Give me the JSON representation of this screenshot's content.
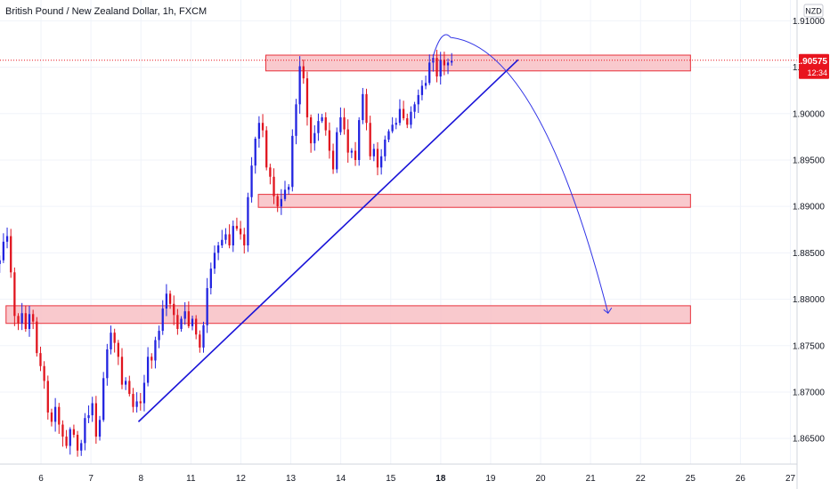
{
  "chart_data": {
    "type": "candlestick",
    "title": "British Pound / New Zealand Dollar, 1h, FXCM",
    "currency": "NZD",
    "ylim": [
      1.862,
      1.912
    ],
    "y_ticks": [
      "1.91000",
      "1.90500",
      "1.90000",
      "1.89500",
      "1.89000",
      "1.88500",
      "1.88000",
      "1.87500",
      "1.87000",
      "1.86500"
    ],
    "y_tick_values": [
      1.91,
      1.905,
      1.9,
      1.895,
      1.89,
      1.885,
      1.88,
      1.875,
      1.87,
      1.865
    ],
    "x_ticks": [
      "6",
      "7",
      "8",
      "11",
      "12",
      "13",
      "14",
      "15",
      "18",
      "19",
      "20",
      "21",
      "22",
      "25",
      "26",
      "27"
    ],
    "x_tick_positions": [
      0.5,
      1.5,
      2.5,
      3.5,
      4.5,
      5.5,
      6.5,
      7.5,
      8.5,
      9.5,
      10.5,
      11.5,
      12.5,
      13.5,
      14.5,
      15.5
    ],
    "bold_ticks": [
      "18"
    ],
    "current_price": {
      "label": "1.90575",
      "value": 1.90575,
      "countdown": "12:34"
    },
    "colors": {
      "up": "#2123e0",
      "down": "#e0141e",
      "zone_fill": "#f8c3c8",
      "zone_stroke": "#e8323c",
      "trendline": "#1a14d8",
      "projection": "#3033e6",
      "price_label_bg": "#e8141e"
    },
    "support_resistance_zones": [
      {
        "x_start": 5.0,
        "x_end": 13.5,
        "y_low": 1.9046,
        "y_high": 1.9063
      },
      {
        "x_start": 4.85,
        "x_end": 13.5,
        "y_low": 1.8899,
        "y_high": 1.8913
      },
      {
        "x_start": -0.2,
        "x_end": 13.5,
        "y_low": 1.8774,
        "y_high": 1.8793
      }
    ],
    "trendline": {
      "x1": 2.45,
      "y1": 1.8668,
      "x2": 10.05,
      "y2": 1.9058
    },
    "projection": {
      "x_start": 8.35,
      "y_start": 1.9062,
      "x_peak": 8.7,
      "y_peak": 1.9082,
      "x_end": 11.85,
      "y_end": 1.8785
    },
    "candles": {
      "x_start": -0.4,
      "x_end": 8.72,
      "closes": [
        1.8838,
        1.8842,
        1.8862,
        1.8868,
        1.8829,
        1.8782,
        1.8774,
        1.8785,
        1.8768,
        1.8784,
        1.8776,
        1.8742,
        1.8728,
        1.8712,
        1.8678,
        1.8668,
        1.8684,
        1.8665,
        1.8652,
        1.8642,
        1.866,
        1.8654,
        1.8637,
        1.8645,
        1.8672,
        1.8675,
        1.8688,
        1.8652,
        1.867,
        1.8715,
        1.8746,
        1.8764,
        1.8753,
        1.8738,
        1.8708,
        1.8712,
        1.8698,
        1.8684,
        1.869,
        1.8688,
        1.871,
        1.8738,
        1.8734,
        1.8756,
        1.8766,
        1.879,
        1.8806,
        1.8795,
        1.8783,
        1.8768,
        1.8779,
        1.8787,
        1.8771,
        1.8779,
        1.8762,
        1.8748,
        1.8772,
        1.8812,
        1.8833,
        1.885,
        1.8858,
        1.8864,
        1.887,
        1.8858,
        1.8879,
        1.8876,
        1.887,
        1.8858,
        1.891,
        1.8944,
        1.8973,
        1.899,
        1.8982,
        1.8942,
        1.8932,
        1.8911,
        1.89,
        1.8908,
        1.8918,
        1.8921,
        1.8976,
        1.901,
        1.9051,
        1.9038,
        1.8996,
        1.8968,
        1.8979,
        1.8992,
        1.8996,
        1.8982,
        1.896,
        1.894,
        1.898,
        1.8996,
        1.8983,
        1.8958,
        1.896,
        1.895,
        1.8993,
        1.9021,
        1.899,
        1.8954,
        1.8962,
        1.8942,
        1.8954,
        1.8972,
        1.8981,
        1.8988,
        1.899,
        1.9005,
        1.8995,
        1.8988,
        1.9002,
        1.901,
        1.902,
        1.903,
        1.9033,
        1.9055,
        1.906,
        1.904,
        1.9058,
        1.9052,
        1.9055,
        1.9057
      ]
    }
  }
}
